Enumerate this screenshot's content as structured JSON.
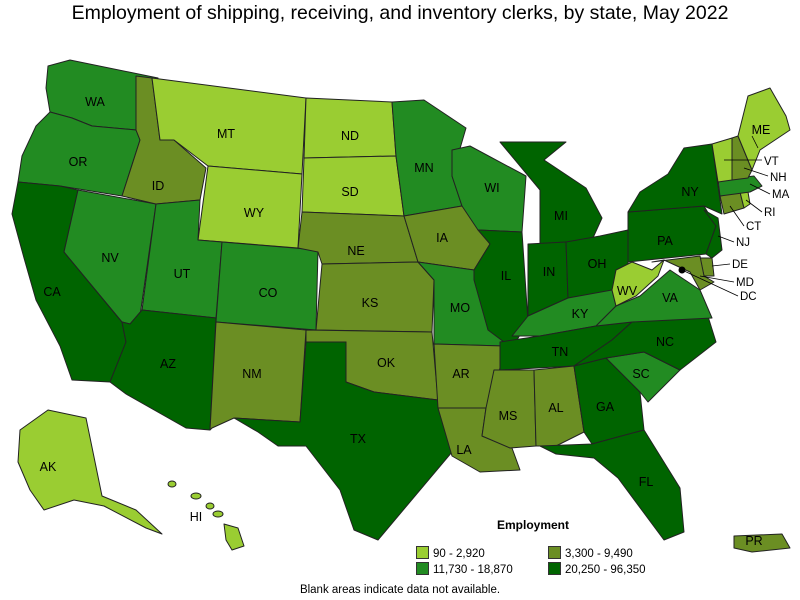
{
  "title": "Employment of shipping, receiving, and inventory clerks, by state, May 2022",
  "legend": {
    "title": "Employment",
    "bins": [
      {
        "label": "90 - 2,920",
        "color": "#9ACD32"
      },
      {
        "label": "3,300 - 9,490",
        "color": "#6B8E23"
      },
      {
        "label": "11,730 - 18,870",
        "color": "#228B22"
      },
      {
        "label": "20,250 - 96,350",
        "color": "#006400"
      }
    ]
  },
  "footnote": "Blank areas indicate data not available.",
  "states": [
    {
      "code": "WA",
      "bin": 2
    },
    {
      "code": "OR",
      "bin": 2
    },
    {
      "code": "CA",
      "bin": 3
    },
    {
      "code": "NV",
      "bin": 2
    },
    {
      "code": "ID",
      "bin": 1
    },
    {
      "code": "MT",
      "bin": 0
    },
    {
      "code": "WY",
      "bin": 0
    },
    {
      "code": "UT",
      "bin": 2
    },
    {
      "code": "AZ",
      "bin": 3
    },
    {
      "code": "CO",
      "bin": 2
    },
    {
      "code": "NM",
      "bin": 1
    },
    {
      "code": "ND",
      "bin": 0
    },
    {
      "code": "SD",
      "bin": 0
    },
    {
      "code": "NE",
      "bin": 1
    },
    {
      "code": "KS",
      "bin": 1
    },
    {
      "code": "OK",
      "bin": 1
    },
    {
      "code": "TX",
      "bin": 3
    },
    {
      "code": "MN",
      "bin": 2
    },
    {
      "code": "IA",
      "bin": 1
    },
    {
      "code": "MO",
      "bin": 2
    },
    {
      "code": "AR",
      "bin": 1
    },
    {
      "code": "LA",
      "bin": 1
    },
    {
      "code": "WI",
      "bin": 2
    },
    {
      "code": "IL",
      "bin": 3
    },
    {
      "code": "MI",
      "bin": 3
    },
    {
      "code": "IN",
      "bin": 3
    },
    {
      "code": "OH",
      "bin": 3
    },
    {
      "code": "KY",
      "bin": 2
    },
    {
      "code": "TN",
      "bin": 3
    },
    {
      "code": "MS",
      "bin": 1
    },
    {
      "code": "AL",
      "bin": 1
    },
    {
      "code": "GA",
      "bin": 3
    },
    {
      "code": "FL",
      "bin": 3
    },
    {
      "code": "SC",
      "bin": 2
    },
    {
      "code": "NC",
      "bin": 3
    },
    {
      "code": "VA",
      "bin": 2
    },
    {
      "code": "WV",
      "bin": 0
    },
    {
      "code": "PA",
      "bin": 3
    },
    {
      "code": "NY",
      "bin": 3
    },
    {
      "code": "NJ",
      "bin": 3
    },
    {
      "code": "DE",
      "bin": 1
    },
    {
      "code": "MD",
      "bin": 1
    },
    {
      "code": "DC",
      "bin": 0
    },
    {
      "code": "CT",
      "bin": 1
    },
    {
      "code": "RI",
      "bin": 0
    },
    {
      "code": "MA",
      "bin": 2
    },
    {
      "code": "NH",
      "bin": 1
    },
    {
      "code": "VT",
      "bin": 0
    },
    {
      "code": "ME",
      "bin": 0
    },
    {
      "code": "AK",
      "bin": 0
    },
    {
      "code": "HI",
      "bin": 0
    },
    {
      "code": "PR",
      "bin": 1
    }
  ]
}
